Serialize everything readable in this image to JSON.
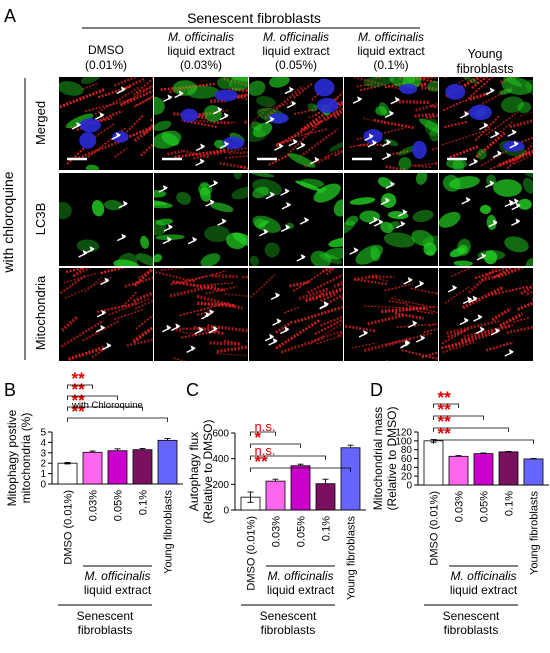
{
  "panel_a": {
    "letter": "A",
    "senescent_header": "Senescent fibroblasts",
    "columns": [
      {
        "line1": "DMSO",
        "line2": "(0.01%)",
        "italic_part": "",
        "rest": ""
      },
      {
        "line1": "M. officinalis",
        "line2": "liquid extract",
        "line3": "(0.03%)"
      },
      {
        "line1": "M. officinalis",
        "line2": "liquid extract",
        "line3": "(0.05%)"
      },
      {
        "line1": "M. officinalis",
        "line2": "liquid extract",
        "line3": "(0.1%)"
      },
      {
        "line1": "Young",
        "line2": "fibroblasts"
      }
    ],
    "side_label": "with chloroquine",
    "rows": [
      "Merged",
      "LC3B",
      "Mitochondria"
    ],
    "colors": {
      "nucleus": "#2a2ad6",
      "lc3b": "#22cc22",
      "mito": "#ee2222",
      "arrow": "#ffffff",
      "background": "#000000"
    }
  },
  "chart_data": [
    {
      "panel": "B",
      "type": "bar",
      "annotation": "with Chloroquine",
      "ylabel": "Mitophagy postive mitochondria (%)",
      "ylim": [
        0,
        5
      ],
      "yticks": [
        "0",
        "1",
        "2",
        "3",
        "4",
        "5"
      ],
      "categories": [
        "DMSO (0.01%)",
        "0.03%",
        "0.05%",
        "0.1%",
        "Young fibroblasts"
      ],
      "values": [
        2.0,
        3.05,
        3.2,
        3.3,
        4.2
      ],
      "errors": [
        0.07,
        0.12,
        0.18,
        0.12,
        0.18
      ],
      "colors": [
        "#ffffff",
        "#ff66ee",
        "#cc00cc",
        "#7a1060",
        "#6666ff"
      ],
      "significance": [
        "**",
        "**",
        "**",
        "**"
      ],
      "sig_color": "#e00000"
    },
    {
      "panel": "C",
      "type": "bar",
      "ylabel": "Autophagy flux (Relative to DMSO)",
      "ylim": [
        0,
        600
      ],
      "yticks": [
        "0",
        "200",
        "400",
        "600"
      ],
      "categories": [
        "DMSO (0.01%)",
        "0.03%",
        "0.05%",
        "0.1%",
        "Young fibroblasts"
      ],
      "values": [
        100,
        225,
        345,
        205,
        485
      ],
      "errors": [
        40,
        15,
        12,
        35,
        20
      ],
      "colors": [
        "#ffffff",
        "#ff66ee",
        "#cc00cc",
        "#7a1060",
        "#6666ff"
      ],
      "significance": [
        "n.s.",
        "*",
        "n.s.",
        "**"
      ],
      "sig_colors": [
        "#e00000",
        "#e00000",
        "#e00000",
        "#e00000"
      ]
    },
    {
      "panel": "D",
      "type": "bar",
      "ylabel": "Mitochondrial mass (Relative to DMSO)",
      "ylim": [
        0,
        120
      ],
      "yticks": [
        "0",
        "20",
        "40",
        "60",
        "80",
        "100",
        "120"
      ],
      "categories": [
        "DMSO (0.01%)",
        "0.03%",
        "0.05%",
        "0.1%",
        "Young fibroblasts"
      ],
      "values": [
        100,
        65,
        71,
        75,
        59
      ],
      "errors": [
        3,
        1.5,
        1.5,
        1,
        1
      ],
      "colors": [
        "#ffffff",
        "#ff66ee",
        "#cc00cc",
        "#7a1060",
        "#6666ff"
      ],
      "significance": [
        "**",
        "**",
        "**",
        "**"
      ],
      "sig_color": "#e00000"
    }
  ],
  "group_labels": {
    "extract_italic": "M. officinalis",
    "extract_rest": "liquid extract",
    "senescent": "Senescent",
    "fibroblasts": "fibroblasts"
  }
}
